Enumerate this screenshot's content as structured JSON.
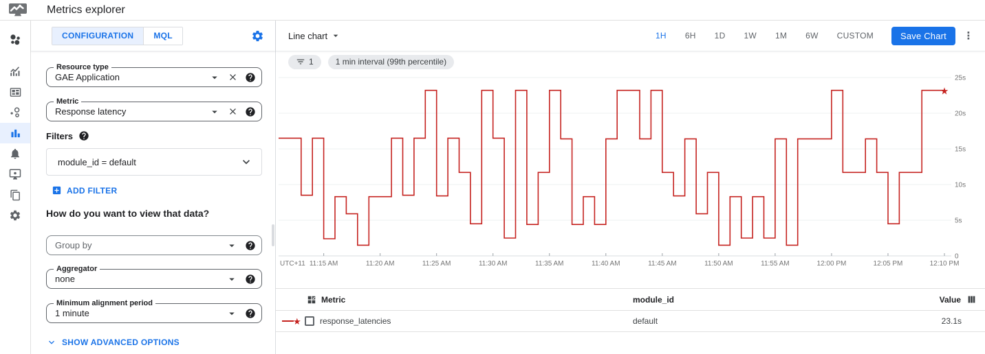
{
  "header": {
    "title": "Metrics explorer"
  },
  "sidebar": {
    "items": [
      {
        "name": "overview",
        "active": false
      },
      {
        "name": "metrics",
        "active": false
      },
      {
        "name": "dashboards",
        "active": false
      },
      {
        "name": "services",
        "active": false
      },
      {
        "name": "metrics-explorer",
        "active": true
      },
      {
        "name": "alerting",
        "active": false
      },
      {
        "name": "uptime-checks",
        "active": false
      },
      {
        "name": "groups",
        "active": false
      },
      {
        "name": "settings",
        "active": false
      }
    ]
  },
  "config_panel": {
    "tabs": [
      {
        "label": "CONFIGURATION",
        "active": true
      },
      {
        "label": "MQL",
        "active": false
      }
    ],
    "resource_type": {
      "label": "Resource type",
      "value": "GAE Application"
    },
    "metric": {
      "label": "Metric",
      "value": "Response latency"
    },
    "filters_label": "Filters",
    "filter_value": "module_id = default",
    "add_filter_label": "ADD FILTER",
    "view_heading": "How do you want to view that data?",
    "group_by": {
      "placeholder": "Group by"
    },
    "aggregator": {
      "label": "Aggregator",
      "value": "none"
    },
    "min_alignment": {
      "label": "Minimum alignment period",
      "value": "1 minute"
    },
    "advanced_label": "SHOW ADVANCED OPTIONS"
  },
  "toolbar": {
    "chart_type_label": "Line chart",
    "time_ranges": [
      "1H",
      "6H",
      "1D",
      "1W",
      "1M",
      "6W",
      "CUSTOM"
    ],
    "active_range": "1H",
    "save_label": "Save Chart"
  },
  "chips": {
    "filter_count": "1",
    "interval_label": "1 min interval (99th percentile)"
  },
  "chart_data": {
    "type": "line",
    "step": true,
    "unit": "s",
    "line_color": "#c5221f",
    "ylim": [
      0,
      25
    ],
    "yticks": [
      "25s",
      "20s",
      "15s",
      "10s",
      "5s",
      "0"
    ],
    "utc_label": "UTC+11",
    "xticks": [
      "11:15 AM",
      "11:20 AM",
      "11:25 AM",
      "11:30 AM",
      "11:35 AM",
      "11:40 AM",
      "11:45 AM",
      "11:50 AM",
      "11:55 AM",
      "12:00 PM",
      "12:05 PM",
      "12:10 PM"
    ],
    "interval_minutes": 1,
    "series": [
      {
        "name": "response_latencies",
        "end_marker": "star",
        "values": [
          16.5,
          16.5,
          8.5,
          16.5,
          2.4,
          8.3,
          5.9,
          1.5,
          8.3,
          8.3,
          16.5,
          8.5,
          16.5,
          23.2,
          8.4,
          16.5,
          11.7,
          4.5,
          23.2,
          16.5,
          2.5,
          23.2,
          4.4,
          11.7,
          23.2,
          16.4,
          4.4,
          8.3,
          4.4,
          16.4,
          23.2,
          23.2,
          16.4,
          23.2,
          11.7,
          8.4,
          16.4,
          5.9,
          11.7,
          1.5,
          8.3,
          2.5,
          8.3,
          2.5,
          16.4,
          1.5,
          16.4,
          16.4,
          16.4,
          23.2,
          11.7,
          11.7,
          16.4,
          11.7,
          4.5,
          11.7,
          11.7,
          23.2,
          23.2,
          23.1
        ]
      }
    ]
  },
  "table": {
    "columns": [
      "Metric",
      "module_id",
      "Value"
    ],
    "rows": [
      {
        "metric": "response_latencies",
        "module_id": "default",
        "value": "23.1s"
      }
    ]
  }
}
